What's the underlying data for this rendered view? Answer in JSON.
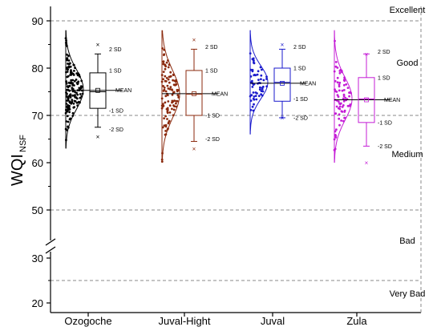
{
  "chart_data": {
    "type": "box",
    "ylabel": "WQI",
    "ylabel_subscript": "NSF",
    "ylim": [
      20,
      95
    ],
    "yticks": [
      20,
      30,
      50,
      60,
      70,
      80,
      90
    ],
    "axis_break_between": [
      30,
      50
    ],
    "categories": [
      "Ozogoche",
      "Juval-Hight",
      "Juval",
      "Zula"
    ],
    "quality_classes": [
      {
        "label": "Excellent",
        "upper_line": 90
      },
      {
        "label": "Good",
        "lower_line": 70
      },
      {
        "label": "Medium",
        "lower_line": 50
      },
      {
        "label": "Bad",
        "lower_line": 25
      },
      {
        "label": "Very Bad"
      }
    ],
    "annotation_labels": {
      "sd2_up": "2 SD",
      "sd1_up": "1 SD",
      "mean": "MEAN",
      "sd1_down": "-1 SD",
      "sd2_down": "-2 SD"
    },
    "series": [
      {
        "name": "Ozogoche",
        "color": "#000000",
        "whisker_low": 67.5,
        "q1": 71.5,
        "median": 75,
        "mean": 75.3,
        "q3": 79,
        "whisker_high": 83,
        "sd2_high": 84,
        "sd1_high": 79.5,
        "sd1_low": 71,
        "sd2_low": 67,
        "min": 65.5,
        "max": 85,
        "dist_center": 75.5,
        "dist_sd": 4.2,
        "pts_min": 63,
        "pts_max": 88,
        "n_points": 160
      },
      {
        "name": "Juval-Hight",
        "color": "#8B2A0E",
        "whisker_low": 64.5,
        "q1": 70,
        "median": 74.5,
        "mean": 74.6,
        "q3": 79.5,
        "whisker_high": 84,
        "sd2_high": 84.5,
        "sd1_high": 79.5,
        "sd1_low": 70,
        "sd2_low": 65,
        "min": 63,
        "max": 86,
        "dist_center": 74.5,
        "dist_sd": 5,
        "pts_min": 60,
        "pts_max": 88,
        "n_points": 110
      },
      {
        "name": "Juval",
        "color": "#1A1ACC",
        "whisker_low": 69.5,
        "q1": 73,
        "median": 77,
        "mean": 76.8,
        "q3": 80,
        "whisker_high": 84,
        "sd2_high": 84.5,
        "sd1_high": 80,
        "sd1_low": 73.5,
        "sd2_low": 69.5,
        "min": 69.5,
        "max": 85,
        "dist_center": 77,
        "dist_sd": 3.5,
        "pts_min": 66,
        "pts_max": 88,
        "n_points": 60
      },
      {
        "name": "Zula",
        "color": "#C41CD6",
        "whisker_low": 63.5,
        "q1": 68.5,
        "median": 73.5,
        "mean": 73.3,
        "q3": 78,
        "whisker_high": 83,
        "sd2_high": 83.5,
        "sd1_high": 78,
        "sd1_low": 68.5,
        "sd2_low": 63.5,
        "min": 60,
        "max": 83,
        "dist_center": 73.5,
        "dist_sd": 4.5,
        "pts_min": 60,
        "pts_max": 88,
        "n_points": 80
      }
    ]
  }
}
